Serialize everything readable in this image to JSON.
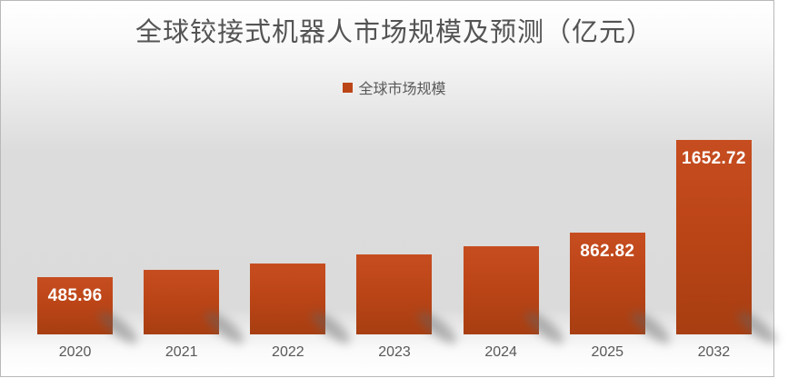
{
  "title": "全球铰接式机器人市场规模及预测（亿元）",
  "legend": {
    "label": "全球市场规模"
  },
  "chart_data": {
    "type": "bar",
    "title": "全球铰接式机器人市场规模及预测（亿元）",
    "categories": [
      "2020",
      "2021",
      "2022",
      "2023",
      "2024",
      "2025",
      "2032"
    ],
    "series": [
      {
        "name": "全球市场规模",
        "values": [
          485.96,
          548,
          602,
          680,
          749,
          862.82,
          1652.72
        ]
      }
    ],
    "data_labels": [
      "485.96",
      "",
      "",
      "",
      "",
      "862.82",
      "1652.72"
    ],
    "xlabel": "",
    "ylabel": "",
    "y_axis_visible": false,
    "gridlines": false,
    "legend_position": "top-center",
    "colors": {
      "bar_gradient_top": "#c64d20",
      "bar_gradient_bottom": "#a73e11",
      "data_label_text": "#ffffff",
      "axis_tick_text": "#595959",
      "title_text": "#545454",
      "background_mid": "#dcdcdc"
    }
  }
}
